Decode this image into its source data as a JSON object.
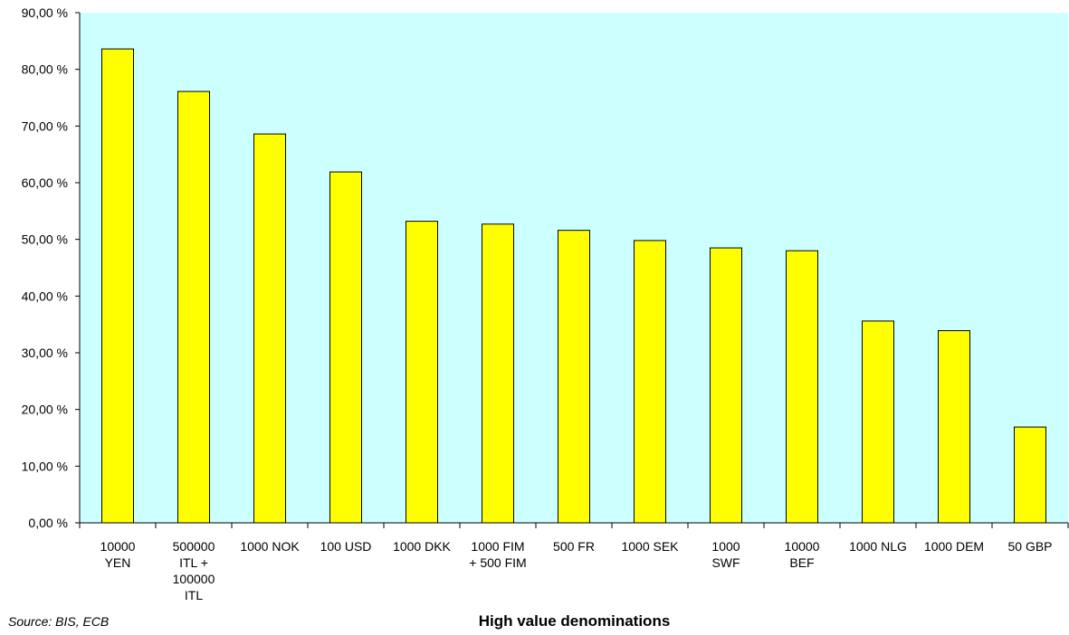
{
  "chart_data": {
    "type": "bar",
    "categories": [
      [
        "10000",
        "YEN"
      ],
      [
        "500000",
        "ITL +",
        "100000",
        "ITL"
      ],
      [
        "1000 NOK"
      ],
      [
        "100 USD"
      ],
      [
        "1000 DKK"
      ],
      [
        "1000 FIM",
        "+ 500 FIM"
      ],
      [
        "500 FR"
      ],
      [
        "1000 SEK"
      ],
      [
        "1000",
        "SWF"
      ],
      [
        "10000",
        "BEF"
      ],
      [
        "1000 NLG"
      ],
      [
        "1000 DEM"
      ],
      [
        "50 GBP"
      ]
    ],
    "values": [
      83.6,
      76.1,
      68.6,
      61.9,
      53.2,
      52.7,
      51.6,
      49.8,
      48.5,
      48.0,
      35.6,
      33.9,
      16.9
    ],
    "ylim": [
      0,
      90
    ],
    "yticks": [
      "0,00 %",
      "10,00 %",
      "20,00 %",
      "30,00 %",
      "40,00 %",
      "50,00 %",
      "60,00 %",
      "70,00 %",
      "80,00 %",
      "90,00 %"
    ],
    "xlabel": "High value denominations",
    "source": "Source: BIS, ECB",
    "grid": false,
    "colors": {
      "bar": "#ffff00",
      "plot_bg": "#ccffff",
      "stroke": "#000000"
    }
  }
}
